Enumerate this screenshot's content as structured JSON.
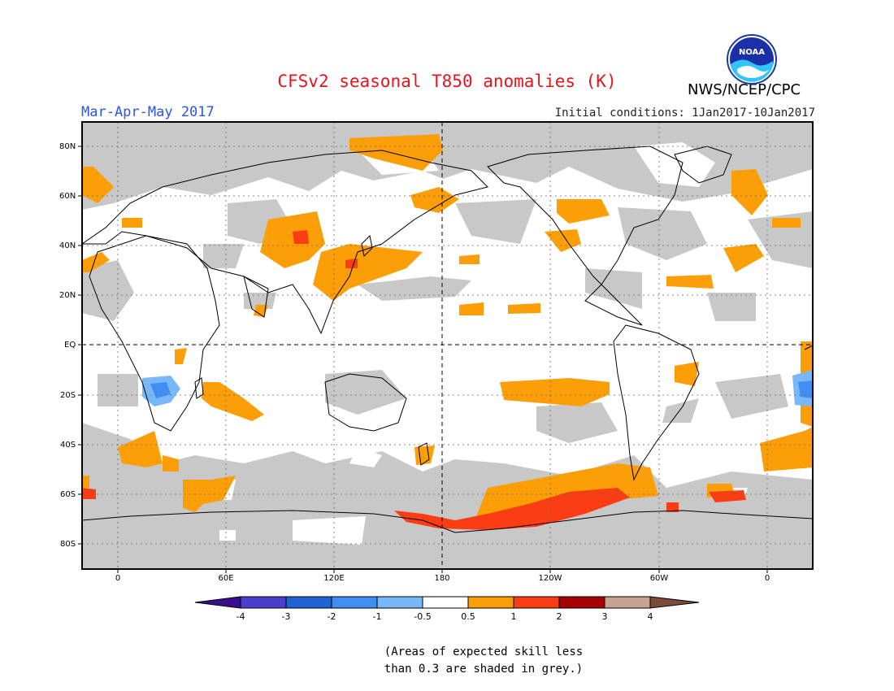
{
  "header": {
    "title": "CFSv2 seasonal T850 anomalies (K)",
    "org": "NWS/NCEP/CPC",
    "season": "Mar-Apr-May 2017",
    "initial_conditions": "Initial conditions: 1Jan2017-10Jan2017",
    "logo_text": "NOAA"
  },
  "axes": {
    "lat_labels": [
      "80N",
      "60N",
      "40N",
      "20N",
      "EQ",
      "20S",
      "40S",
      "60S",
      "80S"
    ],
    "lon_labels": [
      "0",
      "60E",
      "120E",
      "180",
      "120W",
      "60W",
      "0"
    ]
  },
  "colorbar": {
    "labels": [
      "-4",
      "-3",
      "-2",
      "-1",
      "-0.5",
      "0.5",
      "1",
      "2",
      "3",
      "4"
    ],
    "colors": {
      "lt_-4": "#3a0d8f",
      "-4_-3": "#4a3fcc",
      "-3_-2": "#1f62d1",
      "-2_-1": "#3f8ef0",
      "-1_-0.5": "#78b8f8",
      "-0.5_0.5": "#ffffff",
      "0.5_1": "#fb9e07",
      "1_2": "#fa3d12",
      "2_3": "#a50005",
      "3_4": "#c8a391",
      "gt_4": "#7a4b3b"
    }
  },
  "map_colors": {
    "grey_skill": "#c8c8c8",
    "warm_1": "#fb9e07",
    "warm_2": "#fa3d12",
    "cool_1": "#78b8f8",
    "cool_2": "#3f8ef0"
  },
  "note": {
    "line1": "(Areas of expected skill less",
    "line2": "than 0.3 are shaded in grey.)"
  }
}
